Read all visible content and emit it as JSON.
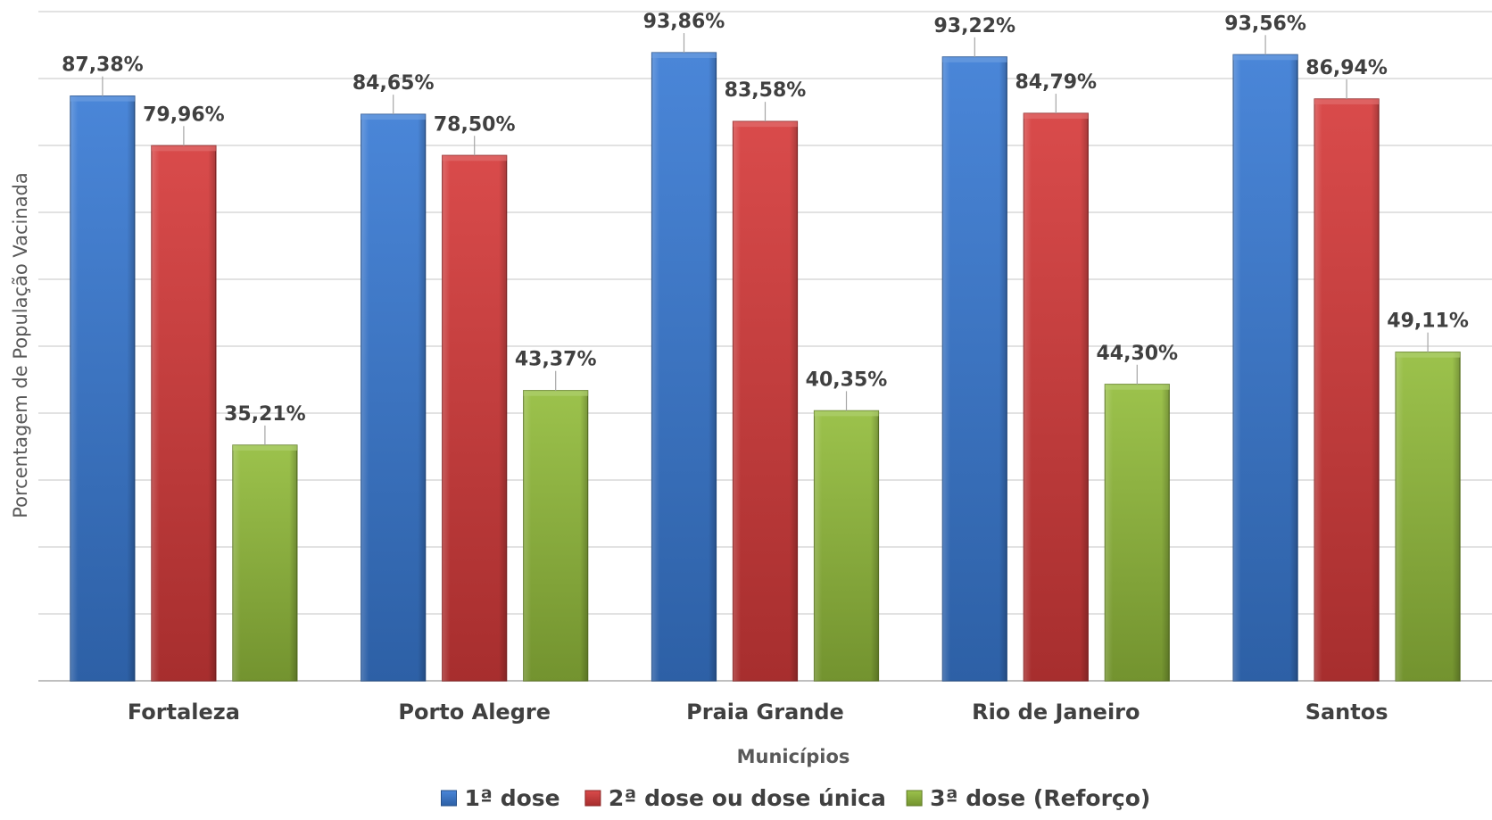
{
  "chart_data": {
    "type": "bar",
    "categories": [
      "Fortaleza",
      "Porto Alegre",
      "Praia Grande",
      "Rio de Janeiro",
      "Santos"
    ],
    "series": [
      {
        "name": "1ª dose",
        "color": "#3a7bd5",
        "values": [
          87.38,
          84.65,
          93.86,
          93.22,
          93.56
        ],
        "labels": [
          "87,38%",
          "84,65%",
          "93,86%",
          "93,22%",
          "93,56%"
        ]
      },
      {
        "name": "2ª dose ou dose única",
        "color": "#d63b3b",
        "values": [
          79.96,
          78.5,
          83.58,
          84.79,
          86.94
        ],
        "labels": [
          "79,96%",
          "78,50%",
          "83,58%",
          "84,79%",
          "86,94%"
        ]
      },
      {
        "name": "3ª dose (Reforço)",
        "color": "#93bd3c",
        "values": [
          35.21,
          43.37,
          40.35,
          44.3,
          49.11
        ],
        "labels": [
          "35,21%",
          "43,37%",
          "40,35%",
          "44,30%",
          "49,11%"
        ]
      }
    ],
    "xlabel": "Municípios",
    "ylabel": "Porcentagem de População Vacinada",
    "ylim": [
      0,
      100
    ],
    "grid": true,
    "legend": "bottom"
  }
}
